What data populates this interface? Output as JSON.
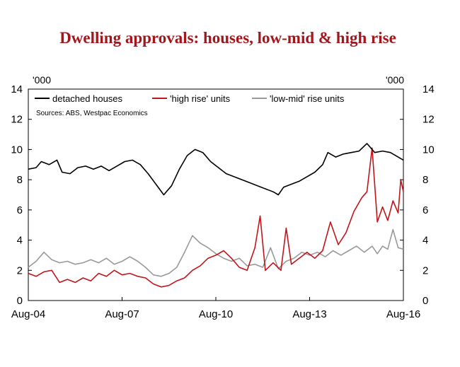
{
  "chart_data": {
    "type": "line",
    "title": "Dwelling approvals: houses, low-mid & high rise",
    "source": "Sources: ABS, Westpac Economics",
    "y_unit_left": "'000",
    "y_unit_right": "'000",
    "ylim": [
      0,
      14
    ],
    "y_ticks": [
      "0",
      "2",
      "4",
      "6",
      "8",
      "10",
      "12",
      "14"
    ],
    "x_ticks": [
      "Aug-04",
      "Aug-07",
      "Aug-10",
      "Aug-13",
      "Aug-16"
    ],
    "xlim": [
      "2004-08",
      "2016-08"
    ],
    "legend_position": "top-left",
    "grid": false,
    "series": [
      {
        "name": "detached houses",
        "color": "#000000",
        "points": [
          [
            "2004-08",
            8.7
          ],
          [
            "2004-11",
            8.8
          ],
          [
            "2005-01",
            9.2
          ],
          [
            "2005-04",
            9.0
          ],
          [
            "2005-07",
            9.3
          ],
          [
            "2005-09",
            8.5
          ],
          [
            "2005-12",
            8.4
          ],
          [
            "2006-03",
            8.8
          ],
          [
            "2006-06",
            8.9
          ],
          [
            "2006-09",
            8.7
          ],
          [
            "2006-12",
            8.9
          ],
          [
            "2007-03",
            8.6
          ],
          [
            "2007-06",
            8.9
          ],
          [
            "2007-09",
            9.2
          ],
          [
            "2007-12",
            9.3
          ],
          [
            "2008-03",
            9.0
          ],
          [
            "2008-06",
            8.4
          ],
          [
            "2008-09",
            7.7
          ],
          [
            "2008-12",
            7.0
          ],
          [
            "2009-03",
            7.6
          ],
          [
            "2009-06",
            8.7
          ],
          [
            "2009-09",
            9.6
          ],
          [
            "2009-12",
            10.0
          ],
          [
            "2010-03",
            9.8
          ],
          [
            "2010-06",
            9.2
          ],
          [
            "2010-09",
            8.8
          ],
          [
            "2010-12",
            8.4
          ],
          [
            "2011-03",
            8.2
          ],
          [
            "2011-06",
            8.0
          ],
          [
            "2011-09",
            7.8
          ],
          [
            "2011-12",
            7.6
          ],
          [
            "2012-03",
            7.4
          ],
          [
            "2012-06",
            7.2
          ],
          [
            "2012-08",
            7.0
          ],
          [
            "2012-10",
            7.5
          ],
          [
            "2013-01",
            7.7
          ],
          [
            "2013-04",
            7.9
          ],
          [
            "2013-07",
            8.2
          ],
          [
            "2013-10",
            8.5
          ],
          [
            "2014-01",
            9.0
          ],
          [
            "2014-03",
            9.8
          ],
          [
            "2014-06",
            9.5
          ],
          [
            "2014-09",
            9.7
          ],
          [
            "2014-12",
            9.8
          ],
          [
            "2015-03",
            9.9
          ],
          [
            "2015-06",
            10.4
          ],
          [
            "2015-09",
            9.8
          ],
          [
            "2015-12",
            9.9
          ],
          [
            "2016-03",
            9.8
          ],
          [
            "2016-06",
            9.5
          ],
          [
            "2016-08",
            9.3
          ]
        ]
      },
      {
        "name": "'high rise' units",
        "color": "#c0161a",
        "points": [
          [
            "2004-08",
            1.8
          ],
          [
            "2004-11",
            1.6
          ],
          [
            "2005-02",
            1.9
          ],
          [
            "2005-05",
            2.0
          ],
          [
            "2005-08",
            1.2
          ],
          [
            "2005-11",
            1.4
          ],
          [
            "2006-02",
            1.2
          ],
          [
            "2006-05",
            1.5
          ],
          [
            "2006-08",
            1.3
          ],
          [
            "2006-11",
            1.8
          ],
          [
            "2007-02",
            1.6
          ],
          [
            "2007-05",
            2.0
          ],
          [
            "2007-08",
            1.7
          ],
          [
            "2007-11",
            1.8
          ],
          [
            "2008-02",
            1.6
          ],
          [
            "2008-05",
            1.5
          ],
          [
            "2008-08",
            1.1
          ],
          [
            "2008-11",
            0.9
          ],
          [
            "2009-02",
            1.0
          ],
          [
            "2009-05",
            1.3
          ],
          [
            "2009-08",
            1.5
          ],
          [
            "2009-11",
            2.0
          ],
          [
            "2010-02",
            2.3
          ],
          [
            "2010-05",
            2.8
          ],
          [
            "2010-08",
            3.0
          ],
          [
            "2010-11",
            3.3
          ],
          [
            "2011-02",
            2.8
          ],
          [
            "2011-05",
            2.2
          ],
          [
            "2011-08",
            2.0
          ],
          [
            "2011-11",
            3.5
          ],
          [
            "2012-01",
            5.6
          ],
          [
            "2012-03",
            2.0
          ],
          [
            "2012-06",
            2.5
          ],
          [
            "2012-09",
            2.0
          ],
          [
            "2012-11",
            4.8
          ],
          [
            "2013-01",
            2.4
          ],
          [
            "2013-04",
            2.8
          ],
          [
            "2013-07",
            3.2
          ],
          [
            "2013-10",
            2.8
          ],
          [
            "2014-01",
            3.3
          ],
          [
            "2014-04",
            5.2
          ],
          [
            "2014-07",
            3.7
          ],
          [
            "2014-10",
            4.5
          ],
          [
            "2015-01",
            5.9
          ],
          [
            "2015-04",
            6.8
          ],
          [
            "2015-06",
            7.2
          ],
          [
            "2015-08",
            10.1
          ],
          [
            "2015-10",
            5.2
          ],
          [
            "2015-12",
            6.2
          ],
          [
            "2016-02",
            5.3
          ],
          [
            "2016-04",
            6.6
          ],
          [
            "2016-06",
            5.8
          ],
          [
            "2016-07",
            8.0
          ],
          [
            "2016-08",
            7.2
          ]
        ]
      },
      {
        "name": "'low-mid' rise units",
        "color": "#999999",
        "points": [
          [
            "2004-08",
            2.2
          ],
          [
            "2004-11",
            2.6
          ],
          [
            "2005-02",
            3.2
          ],
          [
            "2005-05",
            2.7
          ],
          [
            "2005-08",
            2.5
          ],
          [
            "2005-11",
            2.6
          ],
          [
            "2006-02",
            2.4
          ],
          [
            "2006-05",
            2.5
          ],
          [
            "2006-08",
            2.7
          ],
          [
            "2006-11",
            2.5
          ],
          [
            "2007-02",
            2.8
          ],
          [
            "2007-05",
            2.4
          ],
          [
            "2007-08",
            2.6
          ],
          [
            "2007-11",
            2.9
          ],
          [
            "2008-02",
            2.6
          ],
          [
            "2008-05",
            2.2
          ],
          [
            "2008-08",
            1.7
          ],
          [
            "2008-11",
            1.6
          ],
          [
            "2009-02",
            1.8
          ],
          [
            "2009-05",
            2.2
          ],
          [
            "2009-08",
            3.2
          ],
          [
            "2009-11",
            4.3
          ],
          [
            "2010-02",
            3.8
          ],
          [
            "2010-05",
            3.5
          ],
          [
            "2010-08",
            3.1
          ],
          [
            "2010-11",
            2.8
          ],
          [
            "2011-02",
            2.6
          ],
          [
            "2011-05",
            2.8
          ],
          [
            "2011-08",
            2.3
          ],
          [
            "2011-11",
            2.4
          ],
          [
            "2012-02",
            2.2
          ],
          [
            "2012-05",
            3.5
          ],
          [
            "2012-08",
            2.1
          ],
          [
            "2012-11",
            2.6
          ],
          [
            "2013-02",
            2.8
          ],
          [
            "2013-05",
            3.2
          ],
          [
            "2013-08",
            3.0
          ],
          [
            "2013-11",
            3.2
          ],
          [
            "2014-02",
            2.9
          ],
          [
            "2014-05",
            3.3
          ],
          [
            "2014-08",
            3.0
          ],
          [
            "2014-11",
            3.3
          ],
          [
            "2015-02",
            3.6
          ],
          [
            "2015-05",
            3.2
          ],
          [
            "2015-08",
            3.6
          ],
          [
            "2015-10",
            3.1
          ],
          [
            "2015-12",
            3.6
          ],
          [
            "2016-02",
            3.4
          ],
          [
            "2016-04",
            4.7
          ],
          [
            "2016-06",
            3.5
          ],
          [
            "2016-08",
            3.4
          ]
        ]
      }
    ]
  }
}
